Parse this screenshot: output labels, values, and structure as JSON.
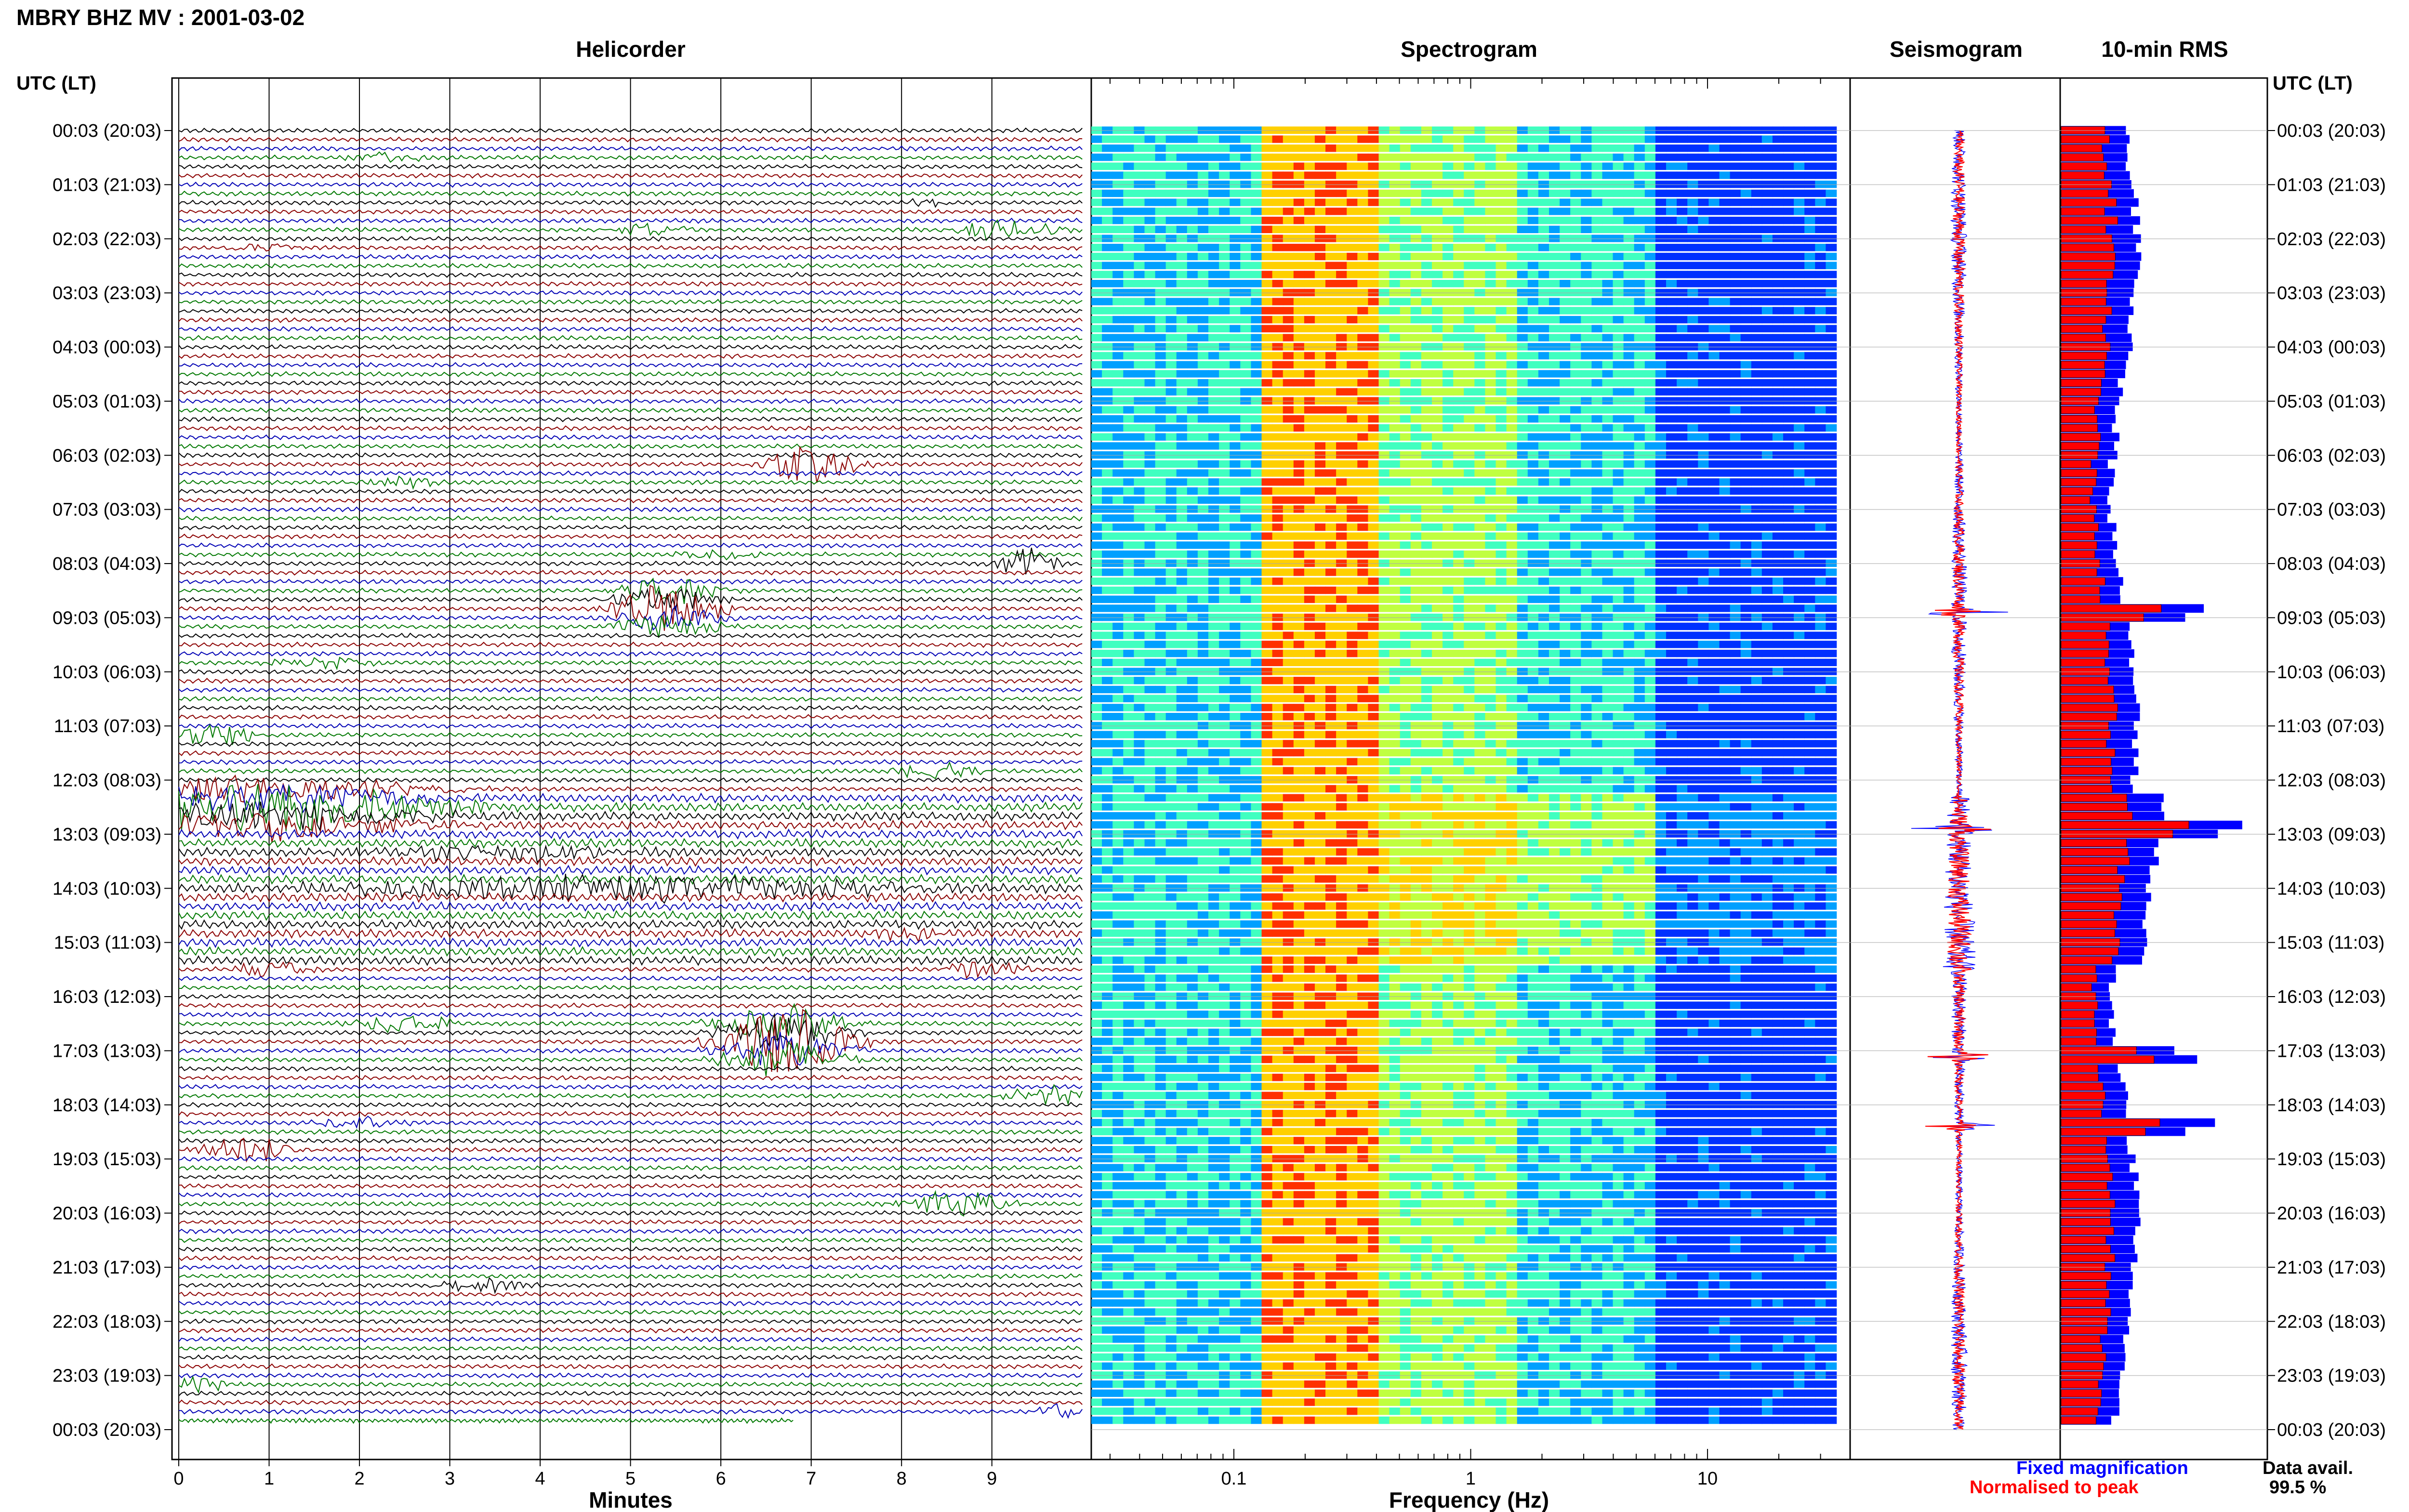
{
  "header": {
    "title": "MBRY BHZ MV : 2001-03-02"
  },
  "panels": {
    "helicorder": "Helicorder",
    "spectrogram": "Spectrogram",
    "seismogram": "Seismogram",
    "rms": "10-min RMS"
  },
  "axes": {
    "left_title": "UTC (LT)",
    "right_title": "UTC (LT)",
    "helicorder_xlabel": "Minutes",
    "spectrogram_xlabel": "Frequency (Hz)"
  },
  "legend": {
    "fixed": "Fixed magnification",
    "normalised": "Normalised to peak",
    "fixed_color": "#0000ff",
    "normalised_color": "#ff0000"
  },
  "availability": {
    "label": "Data avail.",
    "value": "99.5 %"
  },
  "chart_data": {
    "type": "helicorder-spectrogram-composite",
    "station": "MBRY",
    "channel": "BHZ",
    "network": "MV",
    "date": "2001-03-02",
    "time_ticks": [
      "00:03 (20:03)",
      "01:03 (21:03)",
      "02:03 (22:03)",
      "03:03 (23:03)",
      "04:03 (00:03)",
      "05:03 (01:03)",
      "06:03 (02:03)",
      "07:03 (03:03)",
      "08:03 (04:03)",
      "09:03 (05:03)",
      "10:03 (06:03)",
      "11:03 (07:03)",
      "12:03 (08:03)",
      "13:03 (09:03)",
      "14:03 (10:03)",
      "15:03 (11:03)",
      "16:03 (12:03)",
      "17:03 (13:03)",
      "18:03 (14:03)",
      "19:03 (15:03)",
      "20:03 (16:03)",
      "21:03 (17:03)",
      "22:03 (18:03)",
      "23:03 (19:03)",
      "00:03 (20:03)"
    ],
    "helicorder": {
      "x_ticks": [
        "0",
        "1",
        "2",
        "3",
        "4",
        "5",
        "6",
        "7",
        "8",
        "9"
      ],
      "xlim": [
        0,
        10
      ],
      "trace_colors": [
        "#000000",
        "#8b0000",
        "#0000b4",
        "#007800"
      ],
      "rows_per_hour": 6,
      "events": [
        {
          "hour": 0.5,
          "minute": 2.3,
          "amp": 0.6,
          "len": 0.7
        },
        {
          "hour": 1.3,
          "minute": 8.3,
          "amp": 0.5,
          "len": 0.5
        },
        {
          "hour": 1.8,
          "minute": 5.2,
          "amp": 0.7,
          "len": 0.8
        },
        {
          "hour": 1.8,
          "minute": 9.2,
          "amp": 1.3,
          "len": 1.0
        },
        {
          "hour": 2.1,
          "minute": 1.0,
          "amp": 0.5,
          "len": 0.8
        },
        {
          "hour": 6.2,
          "minute": 7.0,
          "amp": 2.2,
          "len": 0.9
        },
        {
          "hour": 6.5,
          "minute": 2.5,
          "amp": 0.6,
          "len": 0.9
        },
        {
          "hour": 7.8,
          "minute": 6.0,
          "amp": 0.5,
          "len": 0.9
        },
        {
          "hour": 8.0,
          "minute": 9.4,
          "amp": 1.8,
          "len": 0.6
        },
        {
          "hour": 8.8,
          "minute": 5.4,
          "amp": 2.8,
          "len": 1.1
        },
        {
          "hour": 9.8,
          "minute": 1.6,
          "amp": 0.6,
          "len": 1.0
        },
        {
          "hour": 11.2,
          "minute": 0.3,
          "amp": 1.5,
          "len": 1.0
        },
        {
          "hour": 11.8,
          "minute": 8.4,
          "amp": 0.9,
          "len": 0.9
        },
        {
          "hour": 12.5,
          "minute": 0.9,
          "amp": 3.0,
          "len": 3.5
        },
        {
          "hour": 13.3,
          "minute": 3.5,
          "amp": 0.9,
          "len": 3.0
        },
        {
          "hour": 14.0,
          "minute": 5.0,
          "amp": 1.4,
          "len": 6.0
        },
        {
          "hour": 14.9,
          "minute": 8.1,
          "amp": 0.7,
          "len": 0.8
        },
        {
          "hour": 15.5,
          "minute": 1.0,
          "amp": 1.0,
          "len": 0.8
        },
        {
          "hour": 15.5,
          "minute": 8.9,
          "amp": 1.0,
          "len": 0.8
        },
        {
          "hour": 16.5,
          "minute": 2.5,
          "amp": 1.1,
          "len": 1.0
        },
        {
          "hour": 16.8,
          "minute": 6.7,
          "amp": 4.0,
          "len": 1.3
        },
        {
          "hour": 17.9,
          "minute": 9.6,
          "amp": 1.1,
          "len": 0.8
        },
        {
          "hour": 18.3,
          "minute": 2.0,
          "amp": 0.8,
          "len": 0.8
        },
        {
          "hour": 18.9,
          "minute": 0.8,
          "amp": 1.4,
          "len": 1.0
        },
        {
          "hour": 19.8,
          "minute": 8.6,
          "amp": 1.7,
          "len": 1.0
        },
        {
          "hour": 21.3,
          "minute": 3.4,
          "amp": 0.8,
          "len": 1.0
        },
        {
          "hour": 23.2,
          "minute": 0.2,
          "amp": 1.0,
          "len": 0.6
        },
        {
          "hour": 23.7,
          "minute": 9.8,
          "amp": 1.2,
          "len": 0.5
        }
      ]
    },
    "spectrogram": {
      "xscale": "log",
      "xlim": [
        0.025,
        40
      ],
      "x_ticks": [
        0.1,
        1,
        10
      ],
      "x_tick_labels": [
        "0.1",
        "1",
        "10"
      ],
      "dominant_band_hz": [
        0.13,
        0.4
      ],
      "colormap": [
        "#0000a0",
        "#0030ff",
        "#00a0ff",
        "#40ffc0",
        "#c0ff40",
        "#ffd000",
        "#ff3000"
      ]
    },
    "rms": {
      "fixed_color": "#0000ff",
      "normalised_color": "#ff0000",
      "peak_hours": [
        8.9,
        12.9,
        17.1,
        18.4
      ]
    }
  }
}
